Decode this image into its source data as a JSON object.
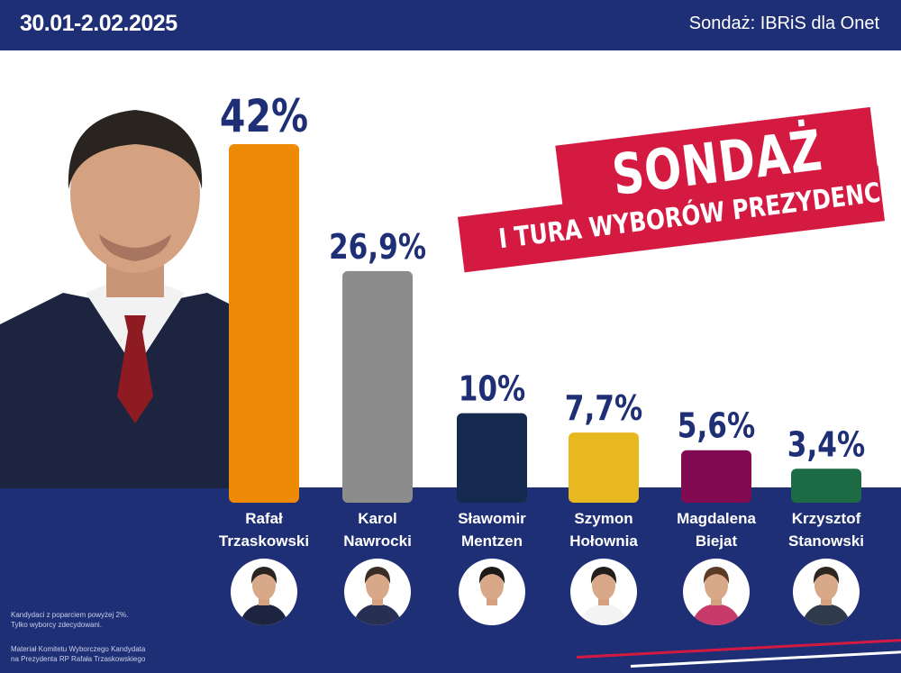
{
  "header": {
    "date": "30.01-2.02.2025",
    "source": "Sondaż: IBRiS dla Onet"
  },
  "banner": {
    "title": "SONDAŻ",
    "subtitle": "I TURA WYBORÓW PREZYDENCKICH"
  },
  "footnotes": {
    "note1": "Kandydaci z poparciem powyżej 2%.",
    "note2": "Tylko wyborcy zdecydowani.",
    "note3": "Materiał Komitetu Wyborczego Kandydata",
    "note4": "na Prezydenta RP Rafała Trzaskowskiego"
  },
  "colors": {
    "navy": "#1f2f75",
    "red": "#d51a41"
  },
  "chart_data": {
    "type": "bar",
    "categories": [
      "Rafał Trzaskowski",
      "Karol Nawrocki",
      "Sławomir Mentzen",
      "Szymon Hołownia",
      "Magdalena Biejat",
      "Krzysztof Stanowski"
    ],
    "name_lines": [
      [
        "Rafał",
        "Trzaskowski"
      ],
      [
        "Karol",
        "Nawrocki"
      ],
      [
        "Sławomir",
        "Mentzen"
      ],
      [
        "Szymon",
        "Hołownia"
      ],
      [
        "Magdalena",
        "Biejat"
      ],
      [
        "Krzysztof",
        "Stanowski"
      ]
    ],
    "values": [
      42,
      26.9,
      10,
      7.7,
      5.6,
      3.4
    ],
    "value_labels": [
      "42%",
      "26,9%",
      "10%",
      "7,7%",
      "5,6%",
      "3,4%"
    ],
    "bar_colors": [
      "#ee8a06",
      "#8c8c8c",
      "#162a4f",
      "#e8b820",
      "#820a52",
      "#1d6b45"
    ],
    "title": "",
    "xlabel": "",
    "ylabel": "",
    "ylim": [
      0,
      42
    ],
    "grid": false
  }
}
